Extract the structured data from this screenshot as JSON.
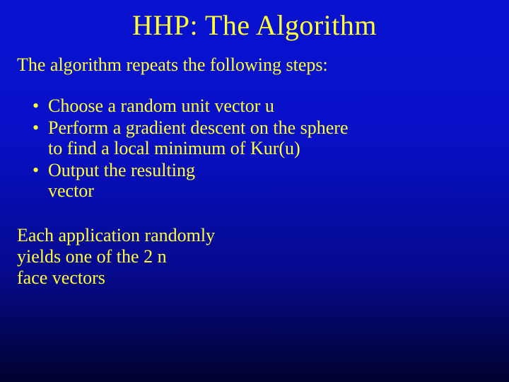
{
  "background": {
    "gradient_top": "#0812d0",
    "gradient_mid": "#060a90",
    "gradient_bottom": "#020230"
  },
  "text_color": "#ffff33",
  "font_family": "Comic Sans MS",
  "title": {
    "text": "HHP: The Algorithm",
    "fontsize": 40
  },
  "intro": {
    "text": "The algorithm repeats the following steps:",
    "fontsize": 26
  },
  "bullets": {
    "fontsize": 26,
    "items": [
      {
        "line1": "Choose a random unit vector u",
        "line2": ""
      },
      {
        "line1": "Perform a gradient descent on the sphere",
        "line2": "to find a local minimum of Kur(u)"
      },
      {
        "line1": "Output the resulting",
        "line2": "vector"
      }
    ]
  },
  "closing": {
    "line1": "Each application randomly",
    "line2": "yields one of the 2 n",
    "line3": "face vectors",
    "fontsize": 26
  }
}
